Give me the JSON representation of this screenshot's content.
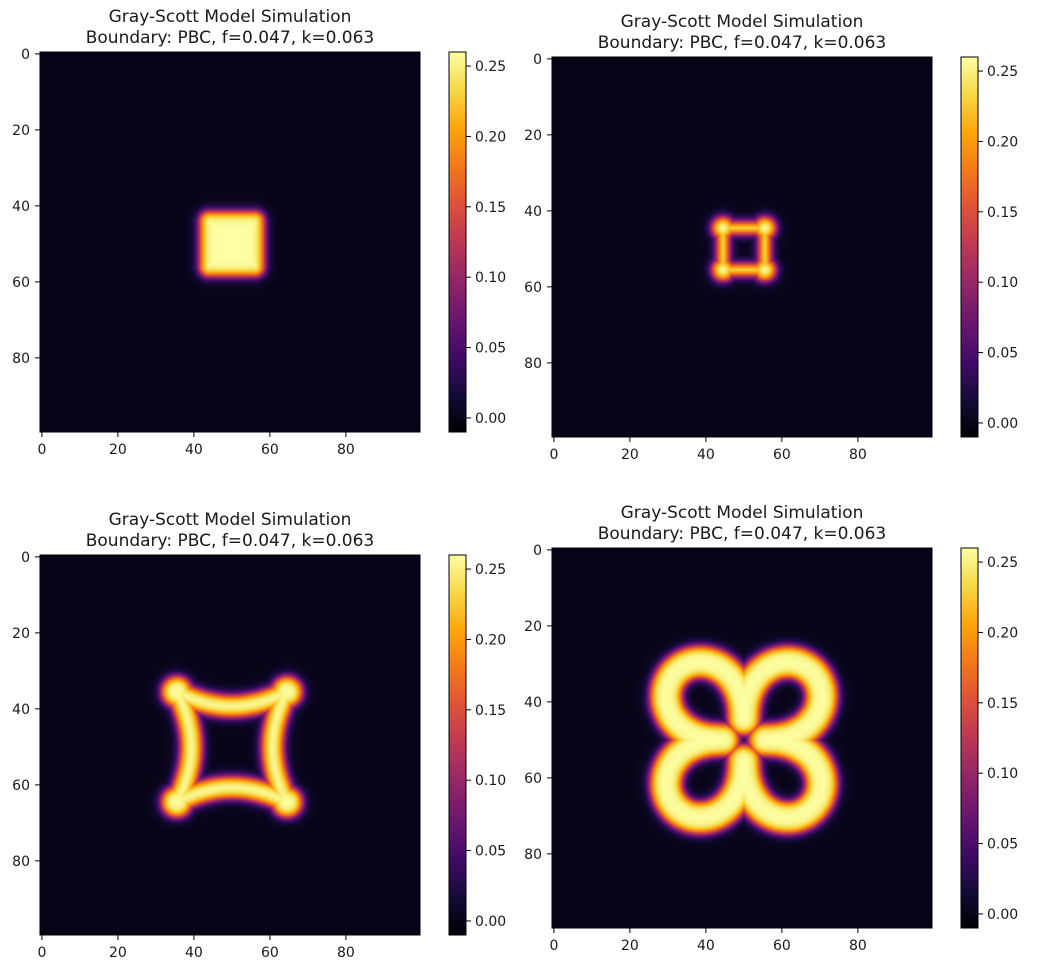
{
  "colors": {
    "colormap": "inferno",
    "background": "#ffffff",
    "axis": "#000000"
  },
  "chart_data": [
    {
      "type": "heatmap",
      "title": "Gray-Scott Model Simulation",
      "subtitle": "Boundary: PBC, f=0.047, k=0.063",
      "grid": false,
      "xlim": [
        0,
        99
      ],
      "ylim": [
        99,
        0
      ],
      "x_ticks": [
        "0",
        "20",
        "40",
        "60",
        "80"
      ],
      "y_ticks": [
        "0",
        "20",
        "40",
        "60",
        "80"
      ],
      "colorbar": {
        "range": [
          -0.01,
          0.26
        ],
        "ticks": [
          "0.25",
          "0.20",
          "0.15",
          "0.10",
          "0.05",
          "0.00"
        ]
      },
      "pattern": {
        "shape": "filled-square",
        "center": [
          50,
          50
        ],
        "half_width": 8.5,
        "corner_radius": 2.5,
        "peak_value": 0.26
      }
    },
    {
      "type": "heatmap",
      "title": "Gray-Scott Model Simulation",
      "subtitle": "Boundary: PBC, f=0.047, k=0.063",
      "grid": false,
      "xlim": [
        0,
        99
      ],
      "ylim": [
        99,
        0
      ],
      "x_ticks": [
        "0",
        "20",
        "40",
        "60",
        "80"
      ],
      "y_ticks": [
        "0",
        "20",
        "40",
        "60",
        "80"
      ],
      "colorbar": {
        "range": [
          -0.01,
          0.26
        ],
        "ticks": [
          "0.25",
          "0.20",
          "0.15",
          "0.10",
          "0.05",
          "0.00"
        ]
      },
      "pattern": {
        "shape": "four-spots-ring",
        "center": [
          50,
          50
        ],
        "spot_offset": 5.5,
        "spot_radius": 2.8,
        "peak_value": 0.26
      }
    },
    {
      "type": "heatmap",
      "title": "Gray-Scott Model Simulation",
      "subtitle": "Boundary: PBC, f=0.047, k=0.063",
      "grid": false,
      "xlim": [
        0,
        99
      ],
      "ylim": [
        99,
        0
      ],
      "x_ticks": [
        "0",
        "20",
        "40",
        "60",
        "80"
      ],
      "y_ticks": [
        "0",
        "20",
        "40",
        "60",
        "80"
      ],
      "colorbar": {
        "range": [
          -0.01,
          0.26
        ],
        "ticks": [
          "0.25",
          "0.20",
          "0.15",
          "0.10",
          "0.05",
          "0.00"
        ]
      },
      "pattern": {
        "shape": "concave-star-ring",
        "center": [
          50,
          50
        ],
        "corner_offset": 14.5,
        "corner_radius": 4.0,
        "line_width": 2.8,
        "peak_value": 0.26
      }
    },
    {
      "type": "heatmap",
      "title": "Gray-Scott Model Simulation",
      "subtitle": "Boundary: PBC, f=0.047, k=0.063",
      "grid": false,
      "xlim": [
        0,
        99
      ],
      "ylim": [
        99,
        0
      ],
      "x_ticks": [
        "0",
        "20",
        "40",
        "60",
        "80"
      ],
      "y_ticks": [
        "0",
        "20",
        "40",
        "60",
        "80"
      ],
      "colorbar": {
        "range": [
          -0.01,
          0.26
        ],
        "ticks": [
          "0.25",
          "0.20",
          "0.15",
          "0.10",
          "0.05",
          "0.00"
        ]
      },
      "pattern": {
        "shape": "four-lobe-loop",
        "center": [
          50,
          50
        ],
        "lobe_offset": 15,
        "lobe_radius": 9,
        "waist": 5.5,
        "band_width": 4.2,
        "peak_value": 0.26
      }
    }
  ]
}
